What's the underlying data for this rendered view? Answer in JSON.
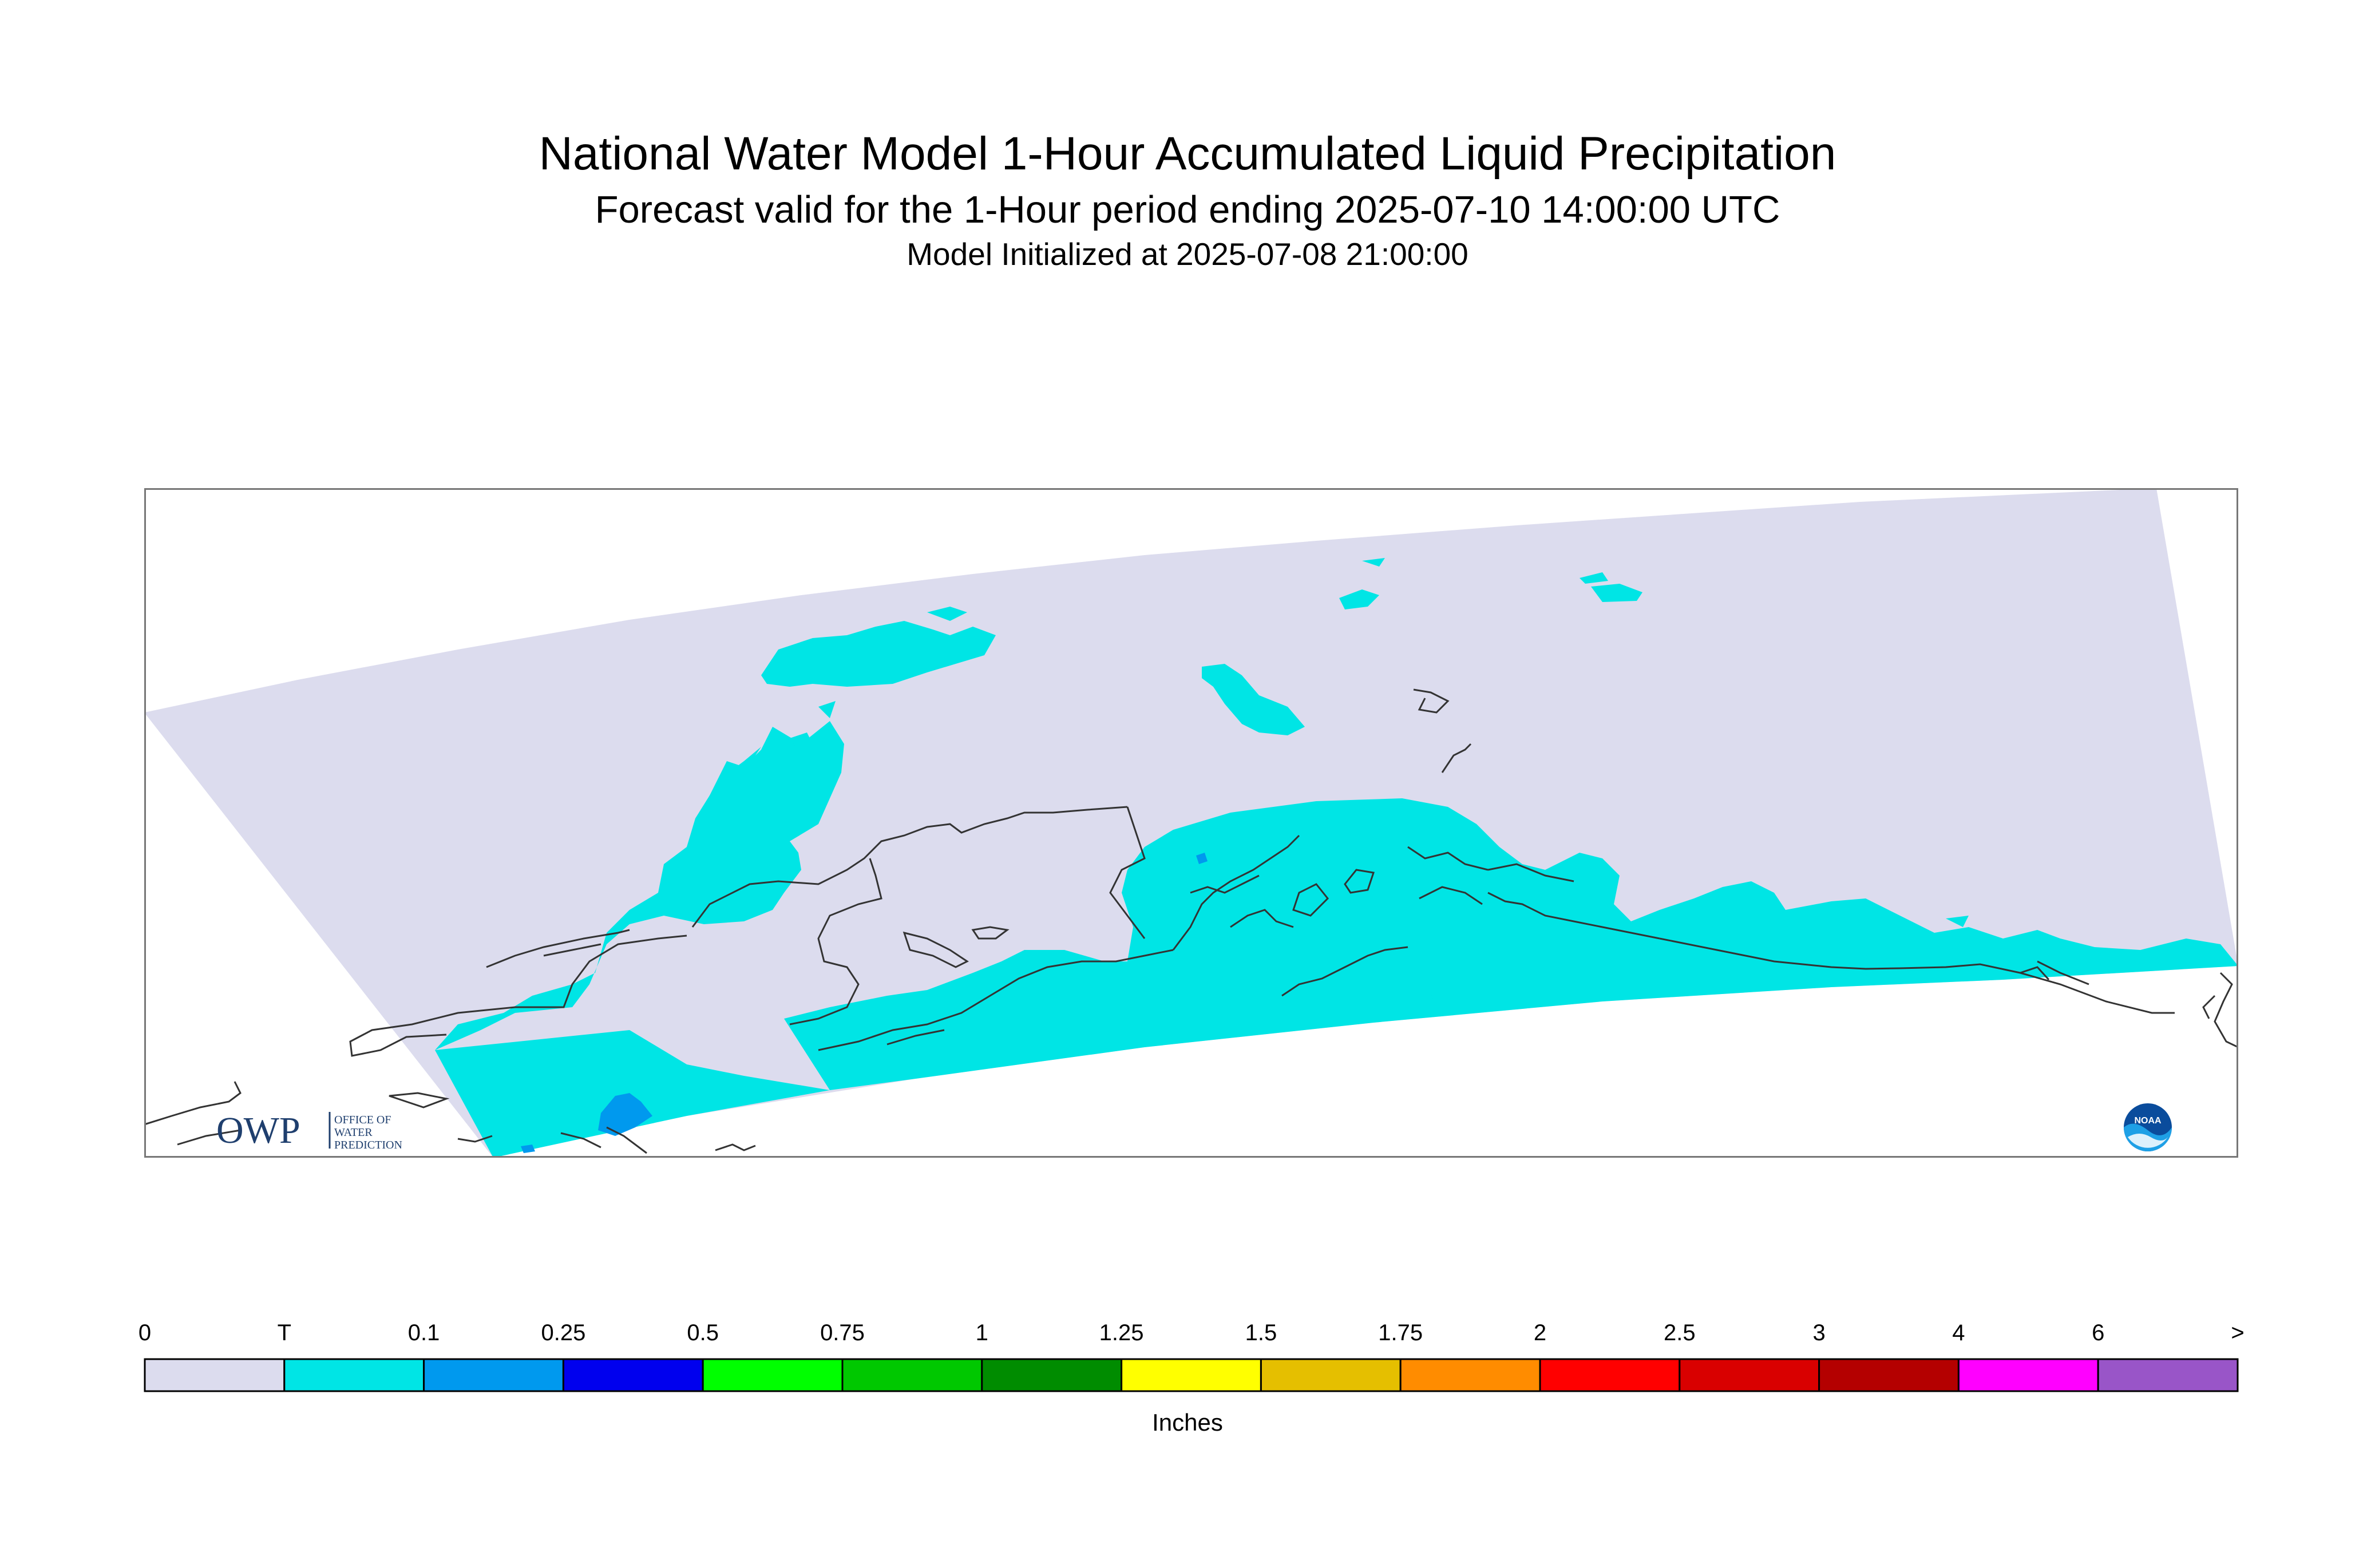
{
  "header": {
    "title": "National Water Model 1-Hour Accumulated Liquid Precipitation",
    "subtitle": "Forecast valid for the 1-Hour period ending 2025-07-10 14:00:00 UTC",
    "init": "Model Initialized at 2025-07-08 21:00:00"
  },
  "map": {
    "background_color": "#ffffff",
    "domain_color": "#dcdcee",
    "coast_color": "#333333"
  },
  "legend": {
    "units": "Inches",
    "ticks": [
      "0",
      "T",
      "0.1",
      "0.25",
      "0.5",
      "0.75",
      "1",
      "1.25",
      "1.5",
      "1.75",
      "2",
      "2.5",
      "3",
      "4",
      "6",
      ">"
    ],
    "colors": [
      "#dcdcee",
      "#00e5e5",
      "#0099ee",
      "#0000ee",
      "#00ff00",
      "#00c800",
      "#008c00",
      "#ffff00",
      "#e5bf00",
      "#ff8c00",
      "#ff0000",
      "#d90000",
      "#b40000",
      "#ff00ff",
      "#9955c8"
    ]
  },
  "logos": {
    "owp_text": "OWP",
    "owp_sub": [
      "OFFICE OF",
      "WATER",
      "PREDICTION"
    ],
    "noaa_text": "NOAA"
  }
}
